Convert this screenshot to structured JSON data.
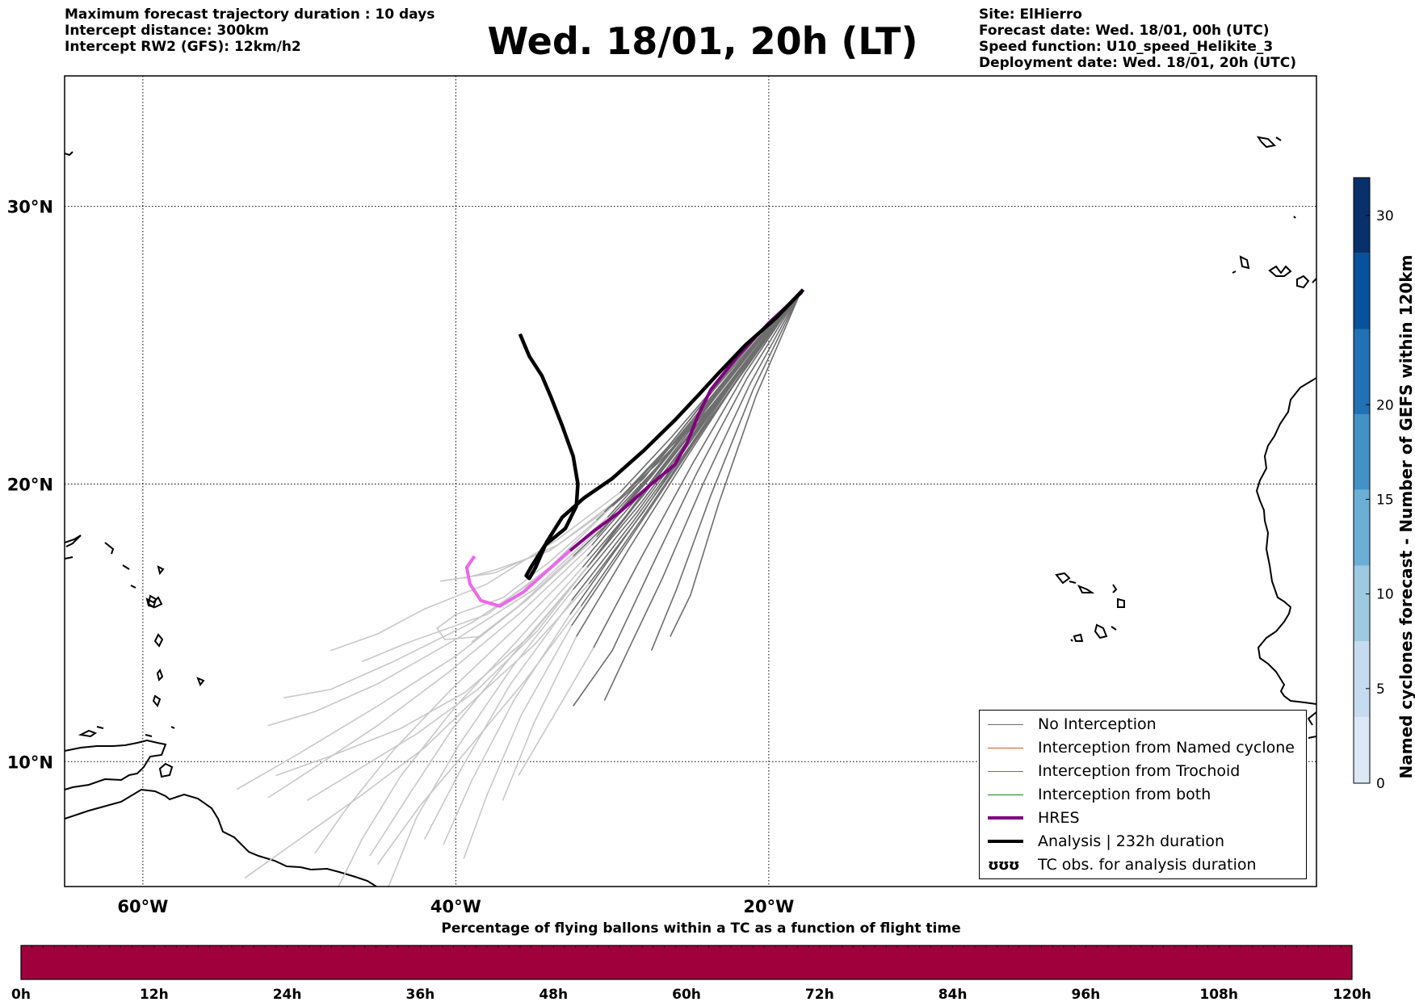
{
  "header_left": [
    "Maximum forecast trajectory duration : 10 days",
    "Intercept distance: 300km",
    "Intercept RW2 (GFS):  12km/h2"
  ],
  "title": "Wed. 18/01, 20h (LT)",
  "header_right": [
    "Site: ElHierro",
    "Forecast date: Wed. 18/01, 00h (UTC)",
    "Speed function: U10_speed_Helikite_3",
    "Deployment date: Wed. 18/01, 20h (UTC)"
  ],
  "map": {
    "lon_range": [
      -65,
      15
    ],
    "lat_range": [
      5.5,
      34.7
    ],
    "lon_ticks": [
      {
        "value": -60,
        "label": "60°W"
      },
      {
        "value": -40,
        "label": "40°W"
      },
      {
        "value": -20,
        "label": "20°W"
      }
    ],
    "lat_ticks": [
      {
        "value": 30,
        "label": "30°N"
      },
      {
        "value": 20,
        "label": "20°N"
      },
      {
        "value": 10,
        "label": "10°N"
      }
    ],
    "gridlines": "dotted",
    "launch_site": {
      "lon": -18.2,
      "lat": 27.7
    }
  },
  "legend": {
    "items": [
      {
        "label": "No Interception",
        "color": "#6e6e6e",
        "style": "thin"
      },
      {
        "label": "Interception from Named cyclone",
        "color": "#e8531e",
        "style": "thin"
      },
      {
        "label": "Interception from Trochoid",
        "color": "#808000",
        "style": "thin"
      },
      {
        "label": "Interception from both",
        "color": "#1a7f1a",
        "style": "thin"
      },
      {
        "label": "HRES",
        "color": "#800080",
        "style": "thick"
      },
      {
        "label": "Analysis | 232h duration",
        "color": "#000000",
        "style": "thick"
      },
      {
        "label": "TC obs. for analysis duration",
        "glyph": "ʊʊʊ",
        "style": "glyph"
      }
    ]
  },
  "colorbar_right": {
    "label": "Named cyclones forecast - Number of GEFS within 120km",
    "min": 0,
    "max": 32,
    "ticks": [
      "0",
      "5",
      "10",
      "15",
      "20",
      "30"
    ],
    "tick_values": [
      0,
      5,
      10,
      15,
      20,
      30
    ],
    "colors": [
      "#dbe8f6",
      "#c6dbef",
      "#9ecae1",
      "#6baed6",
      "#4292c6",
      "#2171b5",
      "#08519c",
      "#08306b"
    ]
  },
  "colorbar_bottom": {
    "title": "Percentage of flying ballons within a TC as a function of flight time",
    "ticks": [
      "0h",
      "12h",
      "24h",
      "36h",
      "48h",
      "60h",
      "72h",
      "84h",
      "96h",
      "108h",
      "120h"
    ],
    "fill_color": "#a0003c"
  },
  "chart_data": {
    "type": "map-trajectories",
    "analysis_track": [
      [
        -17.8,
        27.0
      ],
      [
        -19.5,
        26.0
      ],
      [
        -21.5,
        25.0
      ],
      [
        -23.2,
        24.0
      ],
      [
        -24.5,
        23.2
      ],
      [
        -26.0,
        22.3
      ],
      [
        -28.0,
        21.2
      ],
      [
        -30.0,
        20.2
      ],
      [
        -31.8,
        19.5
      ],
      [
        -33.2,
        18.8
      ],
      [
        -34.2,
        17.9
      ],
      [
        -34.9,
        17.0
      ],
      [
        -35.3,
        16.6
      ],
      [
        -35.5,
        16.7
      ],
      [
        -35.2,
        17.0
      ],
      [
        -34.3,
        17.8
      ],
      [
        -33.0,
        18.4
      ],
      [
        -32.3,
        19.2
      ],
      [
        -32.2,
        20.0
      ],
      [
        -32.5,
        21.0
      ],
      [
        -33.2,
        22.1
      ],
      [
        -33.9,
        23.1
      ],
      [
        -34.5,
        23.9
      ],
      [
        -35.3,
        24.6
      ],
      [
        -35.9,
        25.4
      ]
    ],
    "hres_track": [
      [
        -17.9,
        26.9
      ],
      [
        -20.0,
        25.8
      ],
      [
        -22.0,
        24.6
      ],
      [
        -23.7,
        23.4
      ],
      [
        -24.5,
        22.5
      ],
      [
        -25.2,
        21.5
      ],
      [
        -26.0,
        20.7
      ],
      [
        -27.5,
        20.0
      ],
      [
        -29.5,
        19.0
      ],
      [
        -31.2,
        18.3
      ],
      [
        -32.7,
        17.6
      ],
      [
        -34.1,
        16.9
      ],
      [
        -35.7,
        16.1
      ],
      [
        -37.2,
        15.6
      ],
      [
        -38.4,
        15.8
      ],
      [
        -39.1,
        16.4
      ],
      [
        -39.3,
        17.0
      ],
      [
        -38.8,
        17.4
      ]
    ],
    "hres_split_lon": -32.7,
    "no_interception_tracks": [
      [
        [
          -17.9,
          27.0
        ],
        [
          -20.5,
          25.5
        ],
        [
          -23.0,
          23.8
        ],
        [
          -25.5,
          22.0
        ],
        [
          -28.0,
          20.2
        ],
        [
          -31.0,
          18.7
        ],
        [
          -34.0,
          17.2
        ],
        [
          -37.0,
          15.9
        ],
        [
          -40.0,
          15.3
        ],
        [
          -41.2,
          14.8
        ],
        [
          -40.7,
          14.4
        ],
        [
          -38.5,
          14.5
        ]
      ],
      [
        [
          -17.9,
          27.0
        ],
        [
          -20.4,
          25.3
        ],
        [
          -23.0,
          23.5
        ],
        [
          -26.0,
          21.5
        ],
        [
          -29.5,
          19.5
        ],
        [
          -33.5,
          17.8
        ],
        [
          -37.5,
          16.8
        ],
        [
          -41.0,
          16.5
        ]
      ],
      [
        [
          -17.9,
          27.0
        ],
        [
          -20.6,
          25.4
        ],
        [
          -23.3,
          23.6
        ],
        [
          -26.2,
          21.7
        ],
        [
          -29.5,
          19.7
        ],
        [
          -33.5,
          18.0
        ],
        [
          -38.0,
          16.4
        ],
        [
          -42.0,
          15.5
        ],
        [
          -45.0,
          14.6
        ],
        [
          -48.0,
          14.0
        ]
      ],
      [
        [
          -17.9,
          27.0
        ],
        [
          -20.6,
          25.3
        ],
        [
          -23.5,
          23.4
        ],
        [
          -26.5,
          21.3
        ],
        [
          -30.0,
          19.2
        ],
        [
          -34.0,
          17.0
        ],
        [
          -38.0,
          15.3
        ],
        [
          -43.0,
          14.3
        ],
        [
          -46.0,
          13.6
        ]
      ],
      [
        [
          -17.9,
          27.0
        ],
        [
          -20.7,
          25.2
        ],
        [
          -23.6,
          23.2
        ],
        [
          -26.8,
          21.0
        ],
        [
          -30.3,
          18.8
        ],
        [
          -34.5,
          16.7
        ],
        [
          -39.0,
          15.0
        ],
        [
          -44.0,
          13.6
        ],
        [
          -48.0,
          12.6
        ],
        [
          -51.0,
          12.3
        ]
      ],
      [
        [
          -17.9,
          27.0
        ],
        [
          -20.8,
          25.1
        ],
        [
          -23.8,
          23.0
        ],
        [
          -27.0,
          20.7
        ],
        [
          -30.8,
          18.4
        ],
        [
          -35.0,
          16.2
        ],
        [
          -40.0,
          14.4
        ],
        [
          -45.0,
          12.8
        ],
        [
          -49.0,
          11.8
        ],
        [
          -52.0,
          11.3
        ]
      ],
      [
        [
          -17.9,
          27.0
        ],
        [
          -20.9,
          25.0
        ],
        [
          -24.0,
          22.8
        ],
        [
          -27.3,
          20.5
        ],
        [
          -31.0,
          18.1
        ],
        [
          -35.5,
          15.8
        ],
        [
          -40.0,
          13.8
        ],
        [
          -45.0,
          12.0
        ],
        [
          -50.0,
          10.3
        ],
        [
          -54.0,
          9.0
        ]
      ],
      [
        [
          -17.9,
          27.0
        ],
        [
          -21.0,
          24.9
        ],
        [
          -24.2,
          22.6
        ],
        [
          -27.6,
          20.2
        ],
        [
          -31.3,
          17.8
        ],
        [
          -35.8,
          15.4
        ],
        [
          -40.5,
          13.2
        ],
        [
          -45.0,
          11.3
        ],
        [
          -49.0,
          9.8
        ],
        [
          -52.0,
          8.7
        ]
      ],
      [
        [
          -17.9,
          27.0
        ],
        [
          -21.1,
          24.8
        ],
        [
          -24.4,
          22.4
        ],
        [
          -27.8,
          19.9
        ],
        [
          -31.6,
          17.4
        ],
        [
          -36.0,
          14.9
        ],
        [
          -40.3,
          12.6
        ],
        [
          -44.0,
          10.4
        ],
        [
          -47.0,
          8.3
        ],
        [
          -49.0,
          6.7
        ]
      ],
      [
        [
          -17.9,
          27.0
        ],
        [
          -21.1,
          24.7
        ],
        [
          -24.5,
          22.2
        ],
        [
          -28.0,
          19.6
        ],
        [
          -31.9,
          17.0
        ],
        [
          -36.0,
          14.4
        ],
        [
          -40.0,
          12.0
        ],
        [
          -43.5,
          9.5
        ],
        [
          -46.0,
          7.2
        ],
        [
          -47.5,
          5.5
        ]
      ],
      [
        [
          -17.9,
          27.0
        ],
        [
          -21.2,
          24.6
        ],
        [
          -24.6,
          22.0
        ],
        [
          -28.2,
          19.3
        ],
        [
          -32.2,
          16.6
        ],
        [
          -36.3,
          13.9
        ],
        [
          -40.2,
          11.2
        ],
        [
          -43.0,
          8.8
        ],
        [
          -45.5,
          6.6
        ]
      ],
      [
        [
          -17.9,
          27.0
        ],
        [
          -21.3,
          24.5
        ],
        [
          -24.8,
          21.8
        ],
        [
          -28.4,
          19.0
        ],
        [
          -32.5,
          16.2
        ],
        [
          -36.4,
          13.4
        ],
        [
          -39.8,
          10.6
        ],
        [
          -42.5,
          8.0
        ],
        [
          -44.3,
          5.5
        ]
      ],
      [
        [
          -17.9,
          27.0
        ],
        [
          -21.4,
          24.4
        ],
        [
          -24.9,
          21.6
        ],
        [
          -28.6,
          18.7
        ],
        [
          -32.6,
          15.8
        ],
        [
          -36.5,
          12.8
        ],
        [
          -39.6,
          9.8
        ],
        [
          -42.0,
          7.2
        ]
      ],
      [
        [
          -17.9,
          27.0
        ],
        [
          -21.5,
          24.3
        ],
        [
          -25.0,
          21.4
        ],
        [
          -28.8,
          18.4
        ],
        [
          -32.7,
          15.3
        ],
        [
          -36.3,
          12.2
        ],
        [
          -39.0,
          9.3
        ],
        [
          -40.8,
          7.0
        ]
      ],
      [
        [
          -17.9,
          27.0
        ],
        [
          -21.5,
          24.2
        ],
        [
          -25.1,
          21.2
        ],
        [
          -28.9,
          18.0
        ],
        [
          -32.6,
          14.9
        ],
        [
          -35.8,
          11.7
        ],
        [
          -38.0,
          8.8
        ],
        [
          -39.5,
          6.5
        ]
      ],
      [
        [
          -17.9,
          27.0
        ],
        [
          -21.6,
          24.1
        ],
        [
          -25.2,
          21.0
        ],
        [
          -28.9,
          17.7
        ],
        [
          -32.3,
          14.5
        ],
        [
          -35.0,
          11.4
        ],
        [
          -37.0,
          8.6
        ]
      ],
      [
        [
          -17.9,
          27.0
        ],
        [
          -21.5,
          24.0
        ],
        [
          -24.9,
          20.7
        ],
        [
          -28.2,
          17.3
        ],
        [
          -31.2,
          14.1
        ],
        [
          -33.9,
          11.5
        ],
        [
          -36.0,
          9.5
        ]
      ],
      [
        [
          -17.9,
          27.0
        ],
        [
          -21.4,
          23.8
        ],
        [
          -24.6,
          20.4
        ],
        [
          -27.5,
          17.0
        ],
        [
          -30.0,
          14.0
        ],
        [
          -32.5,
          12.0
        ]
      ],
      [
        [
          -17.9,
          27.0
        ],
        [
          -21.2,
          23.6
        ],
        [
          -24.2,
          20.0
        ],
        [
          -26.8,
          16.6
        ],
        [
          -29.0,
          14.0
        ],
        [
          -30.5,
          12.2
        ]
      ],
      [
        [
          -17.9,
          27.0
        ],
        [
          -21.0,
          23.4
        ],
        [
          -23.7,
          19.6
        ],
        [
          -25.9,
          16.2
        ],
        [
          -27.5,
          14.0
        ]
      ],
      [
        [
          -17.9,
          27.0
        ],
        [
          -20.8,
          23.2
        ],
        [
          -23.2,
          19.3
        ],
        [
          -25.0,
          16.0
        ],
        [
          -26.3,
          14.5
        ]
      ],
      [
        [
          -17.9,
          27.0
        ],
        [
          -21.0,
          24.6
        ],
        [
          -24.0,
          22.6
        ],
        [
          -27.0,
          20.8
        ],
        [
          -30.5,
          19.0
        ],
        [
          -34.0,
          17.6
        ],
        [
          -37.5,
          16.9
        ],
        [
          -39.5,
          16.6
        ]
      ],
      [
        [
          -17.9,
          27.0
        ],
        [
          -20.8,
          25.0
        ],
        [
          -23.6,
          23.0
        ],
        [
          -26.5,
          21.0
        ],
        [
          -29.5,
          19.0
        ],
        [
          -32.5,
          17.4
        ],
        [
          -36.0,
          15.6
        ],
        [
          -39.0,
          14.3
        ]
      ],
      [
        [
          -17.9,
          27.0
        ],
        [
          -21.2,
          24.5
        ],
        [
          -24.6,
          21.9
        ],
        [
          -28.0,
          19.0
        ],
        [
          -31.5,
          16.4
        ],
        [
          -35.0,
          14.2
        ],
        [
          -38.5,
          12.4
        ],
        [
          -42.0,
          10.5
        ],
        [
          -46.0,
          8.8
        ],
        [
          -50.0,
          7.2
        ],
        [
          -53.5,
          5.8
        ]
      ],
      [
        [
          -17.9,
          27.0
        ],
        [
          -21.3,
          24.3
        ],
        [
          -24.7,
          21.6
        ],
        [
          -28.3,
          18.6
        ],
        [
          -32.0,
          15.6
        ],
        [
          -35.6,
          12.9
        ],
        [
          -39.0,
          10.6
        ],
        [
          -42.3,
          8.4
        ],
        [
          -45.0,
          6.3
        ]
      ],
      [
        [
          -17.9,
          27.0
        ],
        [
          -20.9,
          24.8
        ],
        [
          -24.1,
          22.5
        ],
        [
          -27.6,
          20.0
        ],
        [
          -31.2,
          17.3
        ],
        [
          -34.8,
          14.7
        ],
        [
          -38.6,
          12.6
        ],
        [
          -42.5,
          11.0
        ],
        [
          -46.0,
          9.8
        ],
        [
          -49.5,
          8.6
        ]
      ],
      [
        [
          -17.9,
          27.0
        ],
        [
          -21.0,
          24.7
        ],
        [
          -24.3,
          22.3
        ],
        [
          -27.9,
          19.7
        ],
        [
          -31.6,
          17.0
        ],
        [
          -35.3,
          14.5
        ],
        [
          -39.4,
          12.5
        ],
        [
          -43.5,
          11.2
        ],
        [
          -48.0,
          10.2
        ],
        [
          -51.5,
          9.5
        ]
      ]
    ]
  }
}
